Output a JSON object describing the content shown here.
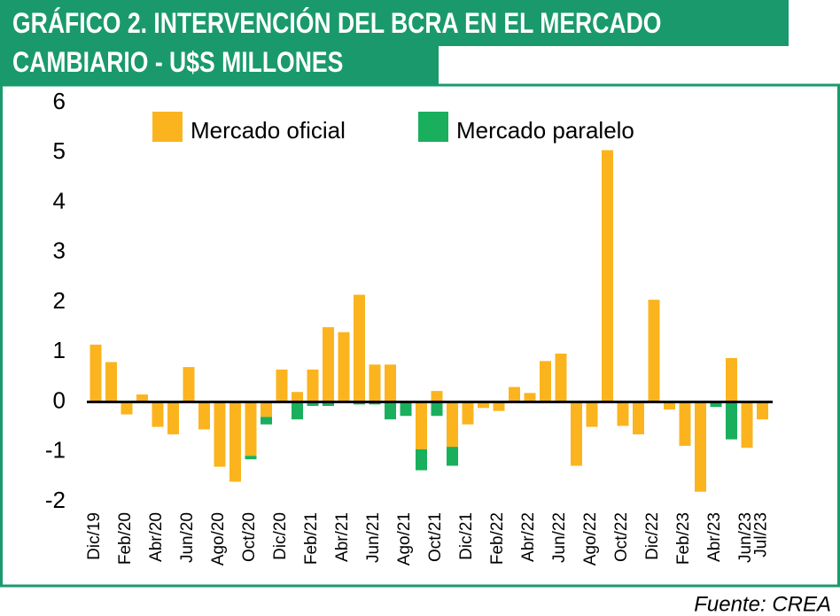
{
  "chart_data": {
    "type": "bar",
    "stacked": true,
    "title": "GRÁFICO 2. INTERVENCIÓN DEL BCRA EN EL MERCADO CAMBIARIO - U$S MILLONES",
    "source": "Fuente: CREA",
    "categories": [
      "Dic/19",
      null,
      "Feb/20",
      null,
      "Abr/20",
      null,
      "Jun/20",
      null,
      "Ago/20",
      null,
      "Oct/20",
      null,
      "Dic/20",
      null,
      "Feb/21",
      null,
      "Abr/21",
      null,
      "Jun/21",
      null,
      "Ago/21",
      null,
      "Oct/21",
      null,
      "Dic/21",
      null,
      "Feb/22",
      null,
      "Abr/22",
      null,
      "Jun/22",
      null,
      "Ago/22",
      null,
      "Oct/22",
      null,
      "Dic/22",
      null,
      "Feb/23",
      null,
      "Abr/23",
      null,
      "Jun/23",
      "Jul/23"
    ],
    "series": [
      {
        "name": "Mercado oficial",
        "color": "#fbb41e",
        "values": [
          1.15,
          0.8,
          -0.25,
          0.15,
          -0.5,
          -0.65,
          0.7,
          -0.55,
          -1.3,
          -1.6,
          -1.08,
          -0.3,
          0.65,
          0.2,
          0.65,
          1.5,
          1.4,
          2.15,
          0.75,
          0.75,
          0,
          -0.95,
          0.22,
          -0.9,
          -0.45,
          -0.12,
          -0.18,
          0.3,
          0.18,
          0.82,
          0.97,
          -1.28,
          -0.5,
          5.05,
          -0.48,
          -0.65,
          2.05,
          -0.15,
          -0.88,
          -1.8,
          0,
          0.88,
          -0.92,
          -0.35
        ]
      },
      {
        "name": "Mercado paralelo",
        "color": "#1aaf5d",
        "values": [
          0,
          0,
          0,
          0,
          0,
          0,
          0,
          0,
          0,
          0,
          -0.07,
          -0.15,
          0,
          -0.35,
          -0.08,
          -0.08,
          0,
          -0.05,
          -0.05,
          -0.35,
          -0.28,
          -0.42,
          -0.28,
          -0.38,
          0,
          0,
          0,
          0,
          0,
          0,
          0,
          0,
          0,
          0,
          0,
          0,
          0,
          0,
          0,
          0,
          -0.1,
          -0.75,
          0,
          0
        ]
      }
    ],
    "ylim": [
      -2,
      6
    ],
    "yticks": [
      -2,
      -1,
      0,
      1,
      2,
      3,
      4,
      5,
      6
    ],
    "grid": false,
    "legend": "top"
  }
}
